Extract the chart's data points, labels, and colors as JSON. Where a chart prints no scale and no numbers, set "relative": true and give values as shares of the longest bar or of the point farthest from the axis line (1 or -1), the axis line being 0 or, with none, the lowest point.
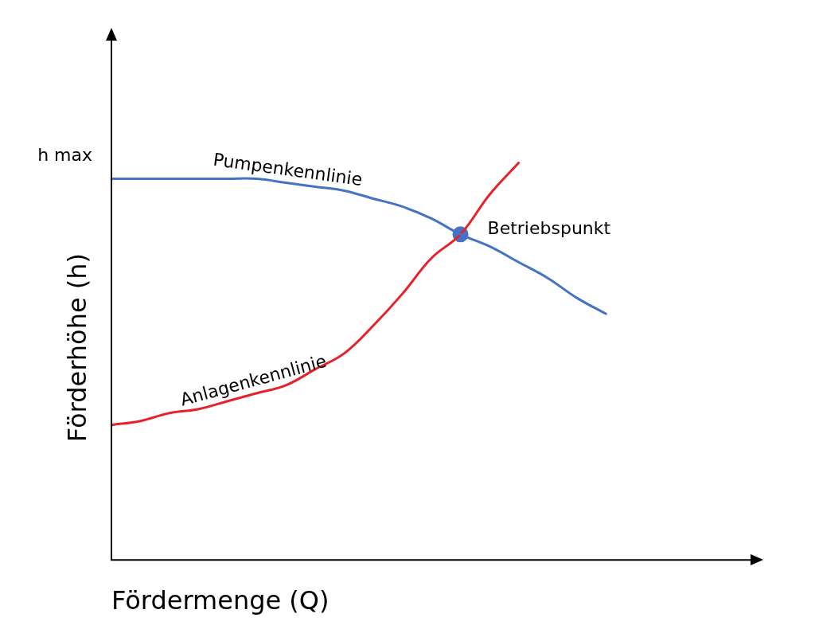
{
  "chart_data": {
    "type": "line",
    "relative": true,
    "xlabel": "Fördermenge (Q)",
    "ylabel": "Förderhöhe (h)",
    "grid": false,
    "legend": false,
    "marker": "none",
    "line_style": "solid",
    "categories": [
      null,
      null,
      null,
      null,
      null,
      null,
      null,
      null,
      null,
      null,
      null,
      null,
      null,
      null,
      null,
      null,
      null,
      null,
      null,
      null,
      null,
      null,
      null
    ],
    "series": [
      {
        "name": "Pumpenkennlinie",
        "color": "#4472c4",
        "values": [
          0.96,
          0.96,
          0.96,
          0.96,
          0.96,
          0.96,
          0.95,
          0.94,
          0.93,
          0.91,
          0.89,
          0.86,
          0.82,
          0.79,
          0.75,
          0.71,
          0.66,
          0.62,
          null,
          null,
          null,
          null,
          null
        ]
      },
      {
        "name": "Anlagenkennlinie",
        "color": "#e8202a",
        "values": [
          0.34,
          0.35,
          0.37,
          0.38,
          0.4,
          0.42,
          0.44,
          0.48,
          0.52,
          0.59,
          0.67,
          0.76,
          0.82,
          0.92,
          1.0,
          null,
          null,
          null,
          null,
          null,
          null,
          null,
          null
        ]
      },
      {
        "marker": "circle",
        "color": "#4472c4",
        "values": [
          null,
          null,
          null,
          null,
          null,
          null,
          null,
          null,
          null,
          null,
          null,
          null,
          0.82,
          null,
          null,
          null,
          null,
          null,
          null,
          null,
          null,
          null,
          null
        ]
      }
    ],
    "annotations": [
      "h max",
      "Betriebspunkt"
    ]
  }
}
